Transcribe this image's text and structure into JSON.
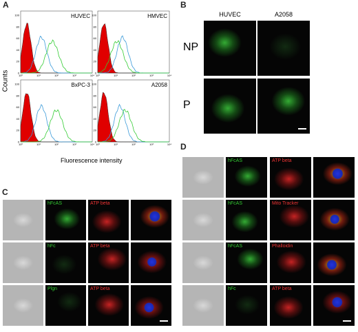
{
  "panels": {
    "A": {
      "label": "A",
      "y_label": "Counts",
      "x_label": "Fluorescence intensity",
      "plots": [
        {
          "title": "HUVEC"
        },
        {
          "title": "HMVEC"
        },
        {
          "title": "BxPC-3"
        },
        {
          "title": "A2058"
        }
      ],
      "yticks": [
        "0",
        "20",
        "40",
        "60",
        "80",
        "100"
      ],
      "xticks": [
        "10⁰",
        "10¹",
        "10²",
        "10³",
        "10⁴"
      ]
    },
    "B": {
      "label": "B",
      "columns": [
        "HUVEC",
        "A2058"
      ],
      "rows": [
        "NP",
        "P"
      ]
    },
    "C": {
      "label": "C",
      "rows": [
        [
          "hFcAS",
          "ATP beta"
        ],
        [
          "hFc",
          "ATP beta"
        ],
        [
          "Plgn",
          "ATP beta"
        ]
      ]
    },
    "D": {
      "label": "D",
      "rows": [
        [
          "hFcAS",
          "ATP beta"
        ],
        [
          "hFcAS",
          "Mito Tracker"
        ],
        [
          "hFcAS",
          "Phalloidin"
        ],
        [
          "hFc",
          "ATP beta"
        ]
      ]
    }
  }
}
